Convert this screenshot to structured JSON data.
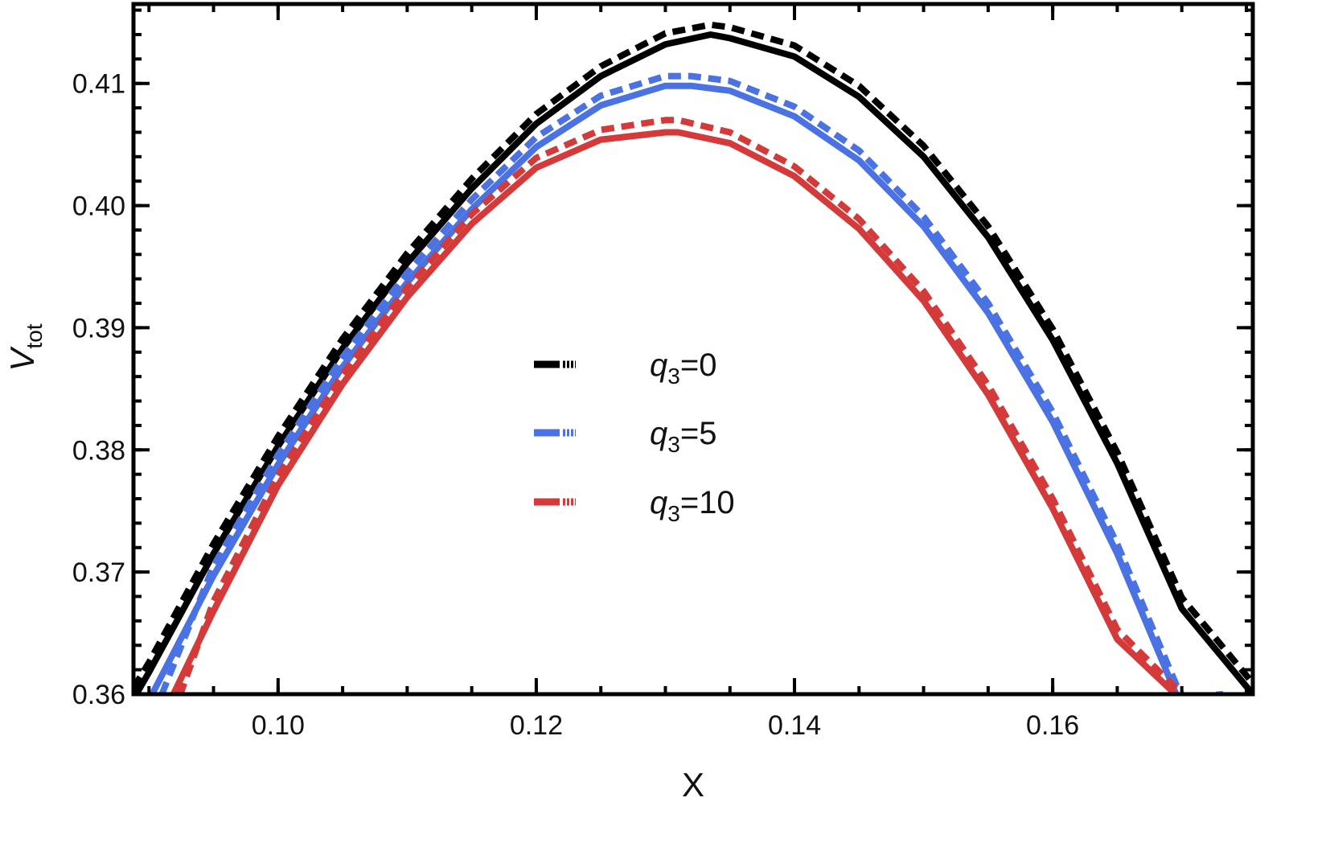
{
  "chart_data": {
    "type": "line",
    "xlabel": "X",
    "ylabel": {
      "main": "V",
      "sub": "tot"
    },
    "xlim": [
      0.0888,
      0.1755
    ],
    "ylim": [
      0.36,
      0.4165
    ],
    "x_ticks": [
      {
        "value": 0.1,
        "label": "0.10"
      },
      {
        "value": 0.12,
        "label": "0.12"
      },
      {
        "value": 0.14,
        "label": "0.14"
      },
      {
        "value": 0.16,
        "label": "0.16"
      }
    ],
    "y_ticks": [
      {
        "value": 0.36,
        "label": "0.36"
      },
      {
        "value": 0.37,
        "label": "0.37"
      },
      {
        "value": 0.38,
        "label": "0.38"
      },
      {
        "value": 0.39,
        "label": "0.39"
      },
      {
        "value": 0.4,
        "label": "0.40"
      },
      {
        "value": 0.41,
        "label": "0.41"
      }
    ],
    "grid": false,
    "frame": "box",
    "legend_position": "center",
    "series": [
      {
        "name": "q3=0",
        "label_main": "q",
        "label_sub": "3",
        "label_rest": "=0",
        "color": "#000000",
        "style": "solid",
        "x": [
          0.0888,
          0.09,
          0.095,
          0.1,
          0.105,
          0.11,
          0.115,
          0.12,
          0.125,
          0.13,
          0.1335,
          0.135,
          0.14,
          0.145,
          0.15,
          0.155,
          0.16,
          0.165,
          0.17,
          0.1755
        ],
        "y": [
          0.3596,
          0.3618,
          0.3715,
          0.3803,
          0.3883,
          0.3953,
          0.4014,
          0.4067,
          0.4106,
          0.4132,
          0.414,
          0.4137,
          0.4122,
          0.4089,
          0.404,
          0.3974,
          0.389,
          0.3789,
          0.367,
          0.36
        ]
      },
      {
        "name": "q3=0",
        "label_main": "q",
        "label_sub": "3",
        "label_rest": "=0",
        "color": "#000000",
        "style": "dashed",
        "x": [
          0.0888,
          0.09,
          0.095,
          0.1,
          0.105,
          0.11,
          0.115,
          0.12,
          0.125,
          0.13,
          0.1335,
          0.135,
          0.14,
          0.145,
          0.15,
          0.155,
          0.16,
          0.165,
          0.17,
          0.1755
        ],
        "y": [
          0.3605,
          0.3626,
          0.3723,
          0.3811,
          0.3891,
          0.3961,
          0.4022,
          0.4075,
          0.4114,
          0.4141,
          0.4148,
          0.4146,
          0.4131,
          0.4098,
          0.4049,
          0.3983,
          0.3899,
          0.3798,
          0.3679,
          0.3609
        ]
      },
      {
        "name": "q3=5",
        "label_main": "q",
        "label_sub": "3",
        "label_rest": "=5",
        "color": "#4a72e2",
        "style": "solid",
        "x": [
          0.0902,
          0.095,
          0.1,
          0.105,
          0.11,
          0.115,
          0.12,
          0.125,
          0.13,
          0.132,
          0.135,
          0.14,
          0.145,
          0.15,
          0.155,
          0.16,
          0.165,
          0.17,
          0.1726
        ],
        "y": [
          0.3599,
          0.3697,
          0.3788,
          0.3868,
          0.3937,
          0.3997,
          0.4048,
          0.4082,
          0.4098,
          0.4098,
          0.4094,
          0.4073,
          0.4037,
          0.3983,
          0.3912,
          0.3823,
          0.3715,
          0.3589,
          0.3597
        ]
      },
      {
        "name": "q3=5",
        "label_main": "q",
        "label_sub": "3",
        "label_rest": "=5",
        "color": "#4a72e2",
        "style": "dashed",
        "x": [
          0.091,
          0.095,
          0.1,
          0.105,
          0.11,
          0.115,
          0.12,
          0.125,
          0.13,
          0.132,
          0.135,
          0.14,
          0.145,
          0.15,
          0.155,
          0.16,
          0.165,
          0.17,
          0.1732
        ],
        "y": [
          0.36,
          0.3705,
          0.3796,
          0.3876,
          0.3945,
          0.4005,
          0.4056,
          0.409,
          0.4106,
          0.4106,
          0.4102,
          0.4081,
          0.4045,
          0.3991,
          0.392,
          0.3831,
          0.3723,
          0.3597,
          0.36
        ]
      },
      {
        "name": "q3=10",
        "label_main": "q",
        "label_sub": "3",
        "label_rest": "=10",
        "color": "#d43a3a",
        "style": "solid",
        "x": [
          0.0918,
          0.095,
          0.1,
          0.105,
          0.11,
          0.115,
          0.12,
          0.125,
          0.13,
          0.131,
          0.135,
          0.14,
          0.145,
          0.15,
          0.155,
          0.16,
          0.165,
          0.1695
        ],
        "y": [
          0.3598,
          0.3668,
          0.3771,
          0.3854,
          0.3925,
          0.3985,
          0.4031,
          0.4054,
          0.406,
          0.406,
          0.4051,
          0.4024,
          0.3981,
          0.3922,
          0.3845,
          0.3752,
          0.3645,
          0.36
        ]
      },
      {
        "name": "q3=10",
        "label_main": "q",
        "label_sub": "3",
        "label_rest": "=10",
        "color": "#d43a3a",
        "style": "dashed",
        "x": [
          0.0924,
          0.095,
          0.1,
          0.105,
          0.11,
          0.115,
          0.12,
          0.125,
          0.13,
          0.131,
          0.135,
          0.14,
          0.145,
          0.15,
          0.155,
          0.16,
          0.165,
          0.17
        ],
        "y": [
          0.3599,
          0.3676,
          0.3779,
          0.3862,
          0.3933,
          0.3993,
          0.4039,
          0.4062,
          0.407,
          0.407,
          0.406,
          0.4032,
          0.3989,
          0.393,
          0.3853,
          0.376,
          0.3653,
          0.36
        ]
      }
    ],
    "legend": [
      {
        "color": "#000000",
        "label_main": "q",
        "label_sub": "3",
        "label_rest": "=0"
      },
      {
        "color": "#4a72e2",
        "label_main": "q",
        "label_sub": "3",
        "label_rest": "=5"
      },
      {
        "color": "#d43a3a",
        "label_main": "q",
        "label_sub": "3",
        "label_rest": "=10"
      }
    ]
  }
}
